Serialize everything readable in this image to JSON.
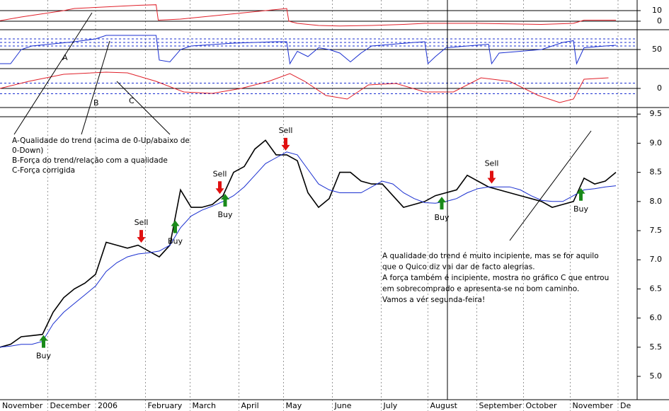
{
  "chart_data": [
    {
      "type": "line",
      "ylim": [
        -6.7,
        20
      ],
      "yticks": [
        10,
        0
      ],
      "series": [
        {
          "color": "#e0202a",
          "x": [
            0,
            2,
            4,
            6,
            7,
            9,
            11,
            13,
            14.7,
            14.9,
            17,
            19,
            21,
            23,
            25,
            27,
            27.2,
            28,
            30,
            32,
            35,
            38,
            40,
            42,
            45,
            48,
            51,
            54,
            55,
            58
          ],
          "values": [
            0.5,
            4,
            7,
            10,
            12,
            13,
            14,
            15,
            15.5,
            1,
            2,
            4,
            6,
            8,
            10,
            12,
            0,
            -2,
            -4,
            -4.5,
            -4,
            -3,
            -2,
            -2,
            -2,
            -2.5,
            -3,
            -2,
            1,
            1
          ]
        }
      ]
    },
    {
      "type": "line",
      "ylim": [
        0,
        100
      ],
      "yticks": [
        50
      ],
      "reference_lines": [
        60,
        70,
        80
      ],
      "series": [
        {
          "color": "#1a2fd0",
          "x": [
            0,
            1,
            2,
            3,
            5,
            7,
            9,
            10,
            14.7,
            15,
            16,
            17,
            18,
            20,
            22,
            24,
            26,
            27,
            27.3,
            28,
            29,
            30,
            31,
            32,
            33,
            34,
            35,
            37,
            39,
            40,
            40.3,
            41,
            42,
            44,
            46,
            46.3,
            47,
            49,
            51,
            53,
            54,
            54.3,
            55,
            57,
            58
          ],
          "values": [
            10,
            10,
            50,
            60,
            66,
            72,
            80,
            90,
            90,
            20,
            15,
            50,
            60,
            64,
            68,
            70,
            72,
            72,
            10,
            45,
            30,
            55,
            50,
            40,
            15,
            40,
            60,
            65,
            70,
            72,
            10,
            30,
            55,
            60,
            65,
            10,
            40,
            45,
            50,
            70,
            75,
            10,
            55,
            60,
            62
          ]
        }
      ]
    },
    {
      "type": "line",
      "ylim": [
        -1,
        1
      ],
      "yticks": [
        0
      ],
      "reference_lines": [
        0.3,
        -0.3
      ],
      "series": [
        {
          "color": "#e0202a",
          "x": [
            0,
            2.7,
            6,
            10,
            12,
            14.7,
            17.3,
            20,
            22.7,
            25.3,
            27.3,
            28.7,
            30.7,
            32.7,
            34.7,
            37.3,
            40,
            42.7,
            45.3,
            48,
            50.7,
            52.7,
            54,
            55,
            57.3
          ],
          "values": [
            0,
            0.4,
            0.8,
            0.92,
            0.88,
            0.4,
            -0.2,
            -0.28,
            0,
            0.4,
            0.84,
            0.4,
            -0.4,
            -0.6,
            0.2,
            0.28,
            -0.2,
            -0.2,
            0.6,
            0.4,
            -0.4,
            -0.8,
            -0.6,
            0.52,
            0.6
          ]
        }
      ]
    },
    {
      "type": "line",
      "ylim": [
        4.6,
        9.6
      ],
      "yticks": [
        9.5,
        {
          "value": 9.0,
          "label": "9.0"
        },
        8.5,
        {
          "value": 8.0,
          "label": "8.0"
        },
        7.5,
        {
          "value": 7.0,
          "label": "7.0"
        },
        6.5,
        {
          "value": 6.0,
          "label": "6.0"
        },
        5.5,
        {
          "value": 5.0,
          "label": "5.0"
        }
      ],
      "xlim": [
        0,
        60
      ],
      "xticks": [
        {
          "value": 0,
          "label": "November"
        },
        {
          "value": 4.5,
          "label": "December"
        },
        {
          "value": 9,
          "label": "2006"
        },
        {
          "value": 13.7,
          "label": "February"
        },
        {
          "value": 17.9,
          "label": "March"
        },
        {
          "value": 22.5,
          "label": "April"
        },
        {
          "value": 26.7,
          "label": "May"
        },
        {
          "value": 31.3,
          "label": "June"
        },
        {
          "value": 35.9,
          "label": "July"
        },
        {
          "value": 40.3,
          "label": "August"
        },
        {
          "value": 44.9,
          "label": "September"
        },
        {
          "value": 49.3,
          "label": "October"
        },
        {
          "value": 53.7,
          "label": "November"
        },
        {
          "value": 58.2,
          "label": "De"
        }
      ],
      "series": [
        {
          "color": "#000000",
          "x": [
            0,
            1,
            2,
            3,
            4,
            5,
            6,
            7,
            8,
            9,
            10,
            11,
            12,
            13,
            14,
            15,
            16,
            17,
            18,
            19,
            20,
            21,
            22,
            23,
            24,
            25,
            26,
            27,
            28,
            29,
            30,
            31,
            32,
            33,
            34,
            35,
            36,
            37,
            38,
            39,
            40,
            41,
            42,
            43,
            44,
            45,
            46,
            47,
            48,
            49,
            50,
            51,
            52,
            53,
            54,
            55,
            56,
            57,
            58
          ],
          "values": [
            5.5,
            5.55,
            5.68,
            5.7,
            5.72,
            6.1,
            6.35,
            6.5,
            6.6,
            6.75,
            7.3,
            7.25,
            7.2,
            7.25,
            7.15,
            7.05,
            7.25,
            8.2,
            7.9,
            7.9,
            7.95,
            8.1,
            8.5,
            8.6,
            8.9,
            9.05,
            8.8,
            8.8,
            8.7,
            8.15,
            7.9,
            8.05,
            8.5,
            8.5,
            8.35,
            8.3,
            8.3,
            8.1,
            7.9,
            7.95,
            8.0,
            8.1,
            8.15,
            8.2,
            8.45,
            8.35,
            8.25,
            8.2,
            8.15,
            8.1,
            8.05,
            8.0,
            7.9,
            7.95,
            8.0,
            8.4,
            8.3,
            8.35,
            8.5
          ]
        },
        {
          "color": "#1a2fd0",
          "x": [
            0,
            1,
            2,
            3,
            4,
            5,
            6,
            7,
            8,
            9,
            10,
            11,
            12,
            13,
            14,
            15,
            16,
            17,
            18,
            19,
            20,
            21,
            22,
            23,
            24,
            25,
            26,
            27,
            28,
            29,
            30,
            31,
            32,
            33,
            34,
            35,
            36,
            37,
            38,
            39,
            40,
            41,
            42,
            43,
            44,
            45,
            46,
            47,
            48,
            49,
            50,
            51,
            52,
            53,
            54,
            55,
            56,
            57,
            58
          ],
          "values": [
            5.5,
            5.52,
            5.55,
            5.55,
            5.6,
            5.9,
            6.1,
            6.25,
            6.4,
            6.55,
            6.8,
            6.95,
            7.05,
            7.1,
            7.12,
            7.15,
            7.25,
            7.55,
            7.75,
            7.85,
            7.92,
            8.0,
            8.1,
            8.25,
            8.45,
            8.65,
            8.75,
            8.85,
            8.8,
            8.55,
            8.3,
            8.2,
            8.15,
            8.15,
            8.15,
            8.25,
            8.35,
            8.3,
            8.15,
            8.05,
            7.98,
            7.97,
            8.0,
            8.05,
            8.15,
            8.22,
            8.25,
            8.25,
            8.25,
            8.2,
            8.1,
            8.02,
            8.0,
            8.0,
            8.1,
            8.2,
            8.22,
            8.25,
            8.27
          ]
        }
      ],
      "signals": [
        {
          "label": "Buy",
          "x": 4.1
        },
        {
          "label": "Sell",
          "x": 13.3
        },
        {
          "label": "Buy",
          "x": 16.5
        },
        {
          "label": "Sell",
          "x": 20.7
        },
        {
          "label": "Buy",
          "x": 21.2
        },
        {
          "label": "Sell",
          "x": 26.9
        },
        {
          "label": "Buy",
          "x": 41.6
        },
        {
          "label": "Sell",
          "x": 46.3
        },
        {
          "label": "Buy",
          "x": 54.7
        }
      ],
      "markers": [
        "A",
        "B",
        "C"
      ],
      "legend_text": [
        "A-Qualidade do trend (acima de 0-Up/abaixo de",
        "0-Down)",
        "B-Força do trend/relação com a qualidade",
        "C-Força corrigida"
      ],
      "comment": [
        "A qualidade do trend é muito incipiente, mas se for aquilo",
        "que o Quico diz vai dar de facto alegrias.",
        "A força também é incipiente, mostra no gráfico C que entrou",
        "em sobrecomprado e apresenta-se no bom caminho.",
        "Vamos a vér segunda-feira!"
      ]
    }
  ]
}
